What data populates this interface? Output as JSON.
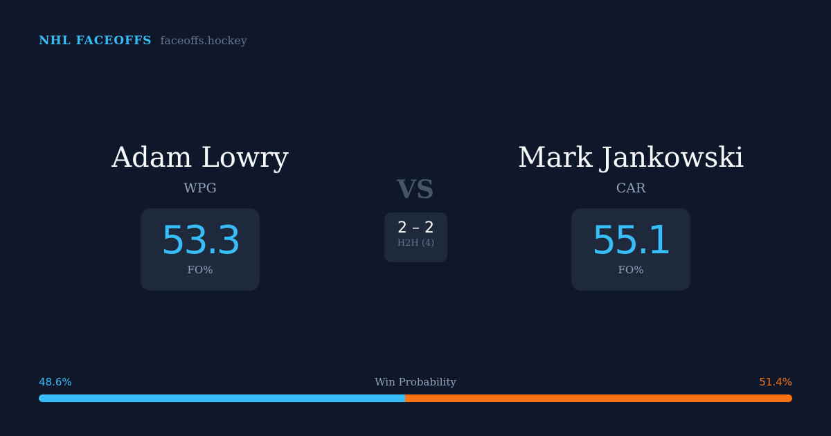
{
  "brand": {
    "title": "NHL FACEOFFS",
    "url": "faceoffs.hockey"
  },
  "player1": {
    "name": "Adam Lowry",
    "team": "WPG",
    "fo_pct": "53.3",
    "fo_label": "FO%"
  },
  "player2": {
    "name": "Mark Jankowski",
    "team": "CAR",
    "fo_pct": "55.1",
    "fo_label": "FO%"
  },
  "vs": "VS",
  "h2h": {
    "score": "2 – 2",
    "label": "H2H (4)"
  },
  "win_probability": {
    "label": "Win Probability",
    "player1": "48.6%",
    "player2": "51.4%",
    "player1_value": 48.6,
    "player2_value": 51.4
  },
  "colors": {
    "player1": "#38bdf8",
    "player2": "#f97316",
    "background": "#0f172a"
  }
}
